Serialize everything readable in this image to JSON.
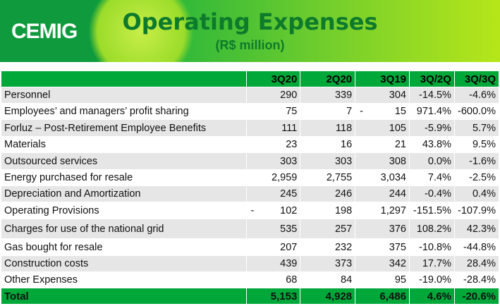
{
  "header": {
    "logo_text": "CEMIG",
    "title": "Operating Expenses",
    "subtitle": "(R$ million)"
  },
  "table": {
    "columns": [
      "",
      "3Q20",
      "2Q20",
      "3Q19",
      "3Q/2Q",
      "3Q/3Q"
    ],
    "rows": [
      {
        "label": "Personnel",
        "v3q20": "290",
        "v2q20": "339",
        "v3q19": "304",
        "qq": "-14.5%",
        "yy": "-4.6%"
      },
      {
        "label": "Employees’ and managers’ profit sharing",
        "v3q20": "75",
        "v2q20": "7",
        "v3q19": "15",
        "qq": "971.4%",
        "yy": "-600.0%",
        "dash_v3q19": "-"
      },
      {
        "label": "Forluz – Post-Retirement Employee Benefits",
        "v3q20": "111",
        "v2q20": "118",
        "v3q19": "105",
        "qq": "-5.9%",
        "yy": "5.7%"
      },
      {
        "label": "Materials",
        "v3q20": "23",
        "v2q20": "16",
        "v3q19": "21",
        "qq": "43.8%",
        "yy": "9.5%"
      },
      {
        "label": "Outsourced services",
        "v3q20": "303",
        "v2q20": "303",
        "v3q19": "308",
        "qq": "0.0%",
        "yy": "-1.6%"
      },
      {
        "label": "Energy purchased for resale",
        "v3q20": "2,959",
        "v2q20": "2,755",
        "v3q19": "3,034",
        "qq": "7.4%",
        "yy": "-2.5%"
      },
      {
        "label": "Depreciation and Amortization",
        "v3q20": "245",
        "v2q20": "246",
        "v3q19": "244",
        "qq": "-0.4%",
        "yy": "0.4%"
      },
      {
        "label": "Operating Provisions",
        "v3q20": "102",
        "v2q20": "198",
        "v3q19": "1,297",
        "qq": "-151.5%",
        "yy": "-107.9%",
        "dash_v3q20": "-"
      },
      {
        "label": "Charges for use of the national grid",
        "v3q20": "535",
        "v2q20": "257",
        "v3q19": "376",
        "qq": "108.2%",
        "yy": "42.3%"
      },
      {
        "label": "Gas bought for resale",
        "v3q20": "207",
        "v2q20": "232",
        "v3q19": "375",
        "qq": "-10.8%",
        "yy": "-44.8%"
      },
      {
        "label": "Construction costs",
        "v3q20": "439",
        "v2q20": "373",
        "v3q19": "342",
        "qq": "17.7%",
        "yy": "28.4%"
      },
      {
        "label": "Other Expenses",
        "v3q20": "68",
        "v2q20": "84",
        "v3q19": "95",
        "qq": "-19.0%",
        "yy": "-28.4%"
      }
    ],
    "total": {
      "label": "Total",
      "v3q20": "5,153",
      "v2q20": "4,928",
      "v3q19": "6,486",
      "qq": "4.6%",
      "yy": "-20.6%"
    }
  }
}
